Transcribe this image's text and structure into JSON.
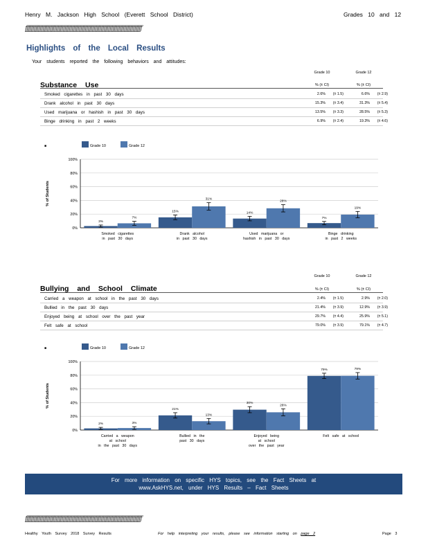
{
  "header": {
    "school": "Henry M. Jackson High School (Everett School District)",
    "grades": "Grades 10 and 12"
  },
  "rule": "ƒƒƒƒƒƒƒƒƒƒƒƒƒƒƒƒƒƒƒƒƒƒƒƒƒƒƒƒƒƒƒƒƒƒƒƒƒƒƒƒƒƒƒƒƒƒƒƒƒƒƒƒƒƒƒƒƒƒƒƒƒƒƒƒƒƒƒƒƒƒƒƒƒƒƒƒƒƒƒƒ",
  "title": "Highlights of the Local Results",
  "intro": "Your students reported the following behaviors and attitudes:",
  "colors": {
    "grade10": "#355a8c",
    "grade12": "#4f78ae",
    "title": "#2b4f83",
    "banner": "#234a7d"
  },
  "sections": [
    {
      "heading": "Substance Use",
      "col_grade10": "Grade 10",
      "col_grade12": "Grade 12",
      "sub10": "% (± CI)",
      "sub12": "% (± CI)",
      "rows": [
        {
          "label": "Smoked cigarettes in past 30 days",
          "g10": "2.6%",
          "ci10": "(± 1.5)",
          "g12": "6.6%",
          "ci12": "(± 2.9)"
        },
        {
          "label": "Drank alcohol in past 30 days",
          "g10": "15.3%",
          "ci10": "(± 3.4)",
          "g12": "31.3%",
          "ci12": "(± 5.4)"
        },
        {
          "label": "Used marijuana or hashish in past 30 days",
          "g10": "13.5%",
          "ci10": "(± 3.3)",
          "g12": "28.5%",
          "ci12": "(± 5.3)"
        },
        {
          "label": "Binge drinking in past 2 weeks",
          "g10": "6.9%",
          "ci10": "(± 2.4)",
          "g12": "19.3%",
          "ci12": "(± 4.6)"
        }
      ]
    },
    {
      "heading": "Bullying and School Climate",
      "col_grade10": "Grade 10",
      "col_grade12": "Grade 12",
      "sub10": "% (± CI)",
      "sub12": "% (± CI)",
      "rows": [
        {
          "label": "Carried a weapon at school in the past 30 days",
          "g10": "2.4%",
          "ci10": "(± 1.5)",
          "g12": "2.9%",
          "ci12": "(± 2.0)"
        },
        {
          "label": "Bullied in the past 30 days",
          "g10": "21.4%",
          "ci10": "(± 3.9)",
          "g12": "12.9%",
          "ci12": "(± 3.9)"
        },
        {
          "label": "Enjoyed being at school over the past year",
          "g10": "29.7%",
          "ci10": "(± 4.4)",
          "g12": "25.9%",
          "ci12": "(± 5.1)"
        },
        {
          "label": "Felt safe at school",
          "g10": "79.0%",
          "ci10": "(± 3.9)",
          "g12": "79.1%",
          "ci12": "(± 4.7)"
        }
      ]
    }
  ],
  "chart_data": [
    {
      "type": "bar",
      "title": "",
      "ylabel": "% of Students",
      "ylim": [
        0,
        100
      ],
      "yticks": [
        "0%",
        "20%",
        "40%",
        "60%",
        "80%",
        "100%"
      ],
      "categories": [
        [
          "Smoked cigarettes",
          "in past 30 days"
        ],
        [
          "Drank alcohol",
          "in past 30 days"
        ],
        [
          "Used marijuana or",
          "hashish in past 30 days"
        ],
        [
          "Binge drinking",
          "in past 2 weeks"
        ]
      ],
      "series": [
        {
          "name": "Grade 10",
          "values": [
            2.6,
            15.3,
            13.5,
            6.9
          ],
          "ci": [
            1.5,
            3.4,
            3.3,
            2.4
          ],
          "labels": [
            "3%",
            "15%",
            "14%",
            "7%"
          ]
        },
        {
          "name": "Grade 12",
          "values": [
            6.6,
            31.3,
            28.5,
            19.3
          ],
          "ci": [
            2.9,
            5.4,
            5.3,
            4.6
          ],
          "labels": [
            "7%",
            "31%",
            "28%",
            "19%"
          ]
        }
      ],
      "grid": true,
      "legend": "top-left"
    },
    {
      "type": "bar",
      "title": "",
      "ylabel": "% of Students",
      "ylim": [
        0,
        100
      ],
      "yticks": [
        "0%",
        "20%",
        "40%",
        "60%",
        "80%",
        "100%"
      ],
      "categories": [
        [
          "Carried a weapon",
          "at school",
          "in the past 30 days"
        ],
        [
          "Bullied in the",
          "past 30 days"
        ],
        [
          "Enjoyed being",
          "at school",
          "over the past year"
        ],
        [
          "Felt safe at school"
        ]
      ],
      "series": [
        {
          "name": "Grade 10",
          "values": [
            2.4,
            21.4,
            29.7,
            79.0
          ],
          "ci": [
            1.5,
            3.9,
            4.4,
            3.9
          ],
          "labels": [
            "2%",
            "21%",
            "30%",
            "79%"
          ]
        },
        {
          "name": "Grade 12",
          "values": [
            2.9,
            12.9,
            25.9,
            79.1
          ],
          "ci": [
            2.0,
            3.9,
            5.1,
            4.7
          ],
          "labels": [
            "3%",
            "13%",
            "26%",
            "79%"
          ]
        }
      ],
      "grid": true,
      "legend": "top-left"
    }
  ],
  "banner": {
    "line1": "For more information on specific HYS topics, see the Fact Sheets at",
    "line2": "www.AskHYS.net, under HYS Results – Fact Sheets"
  },
  "footer": {
    "left": "Healthy Youth Survey 2018 Survey Results",
    "middle": "For help interpreting your results, please see information starting on",
    "page_link": "page 2",
    "right": "Page 3"
  }
}
